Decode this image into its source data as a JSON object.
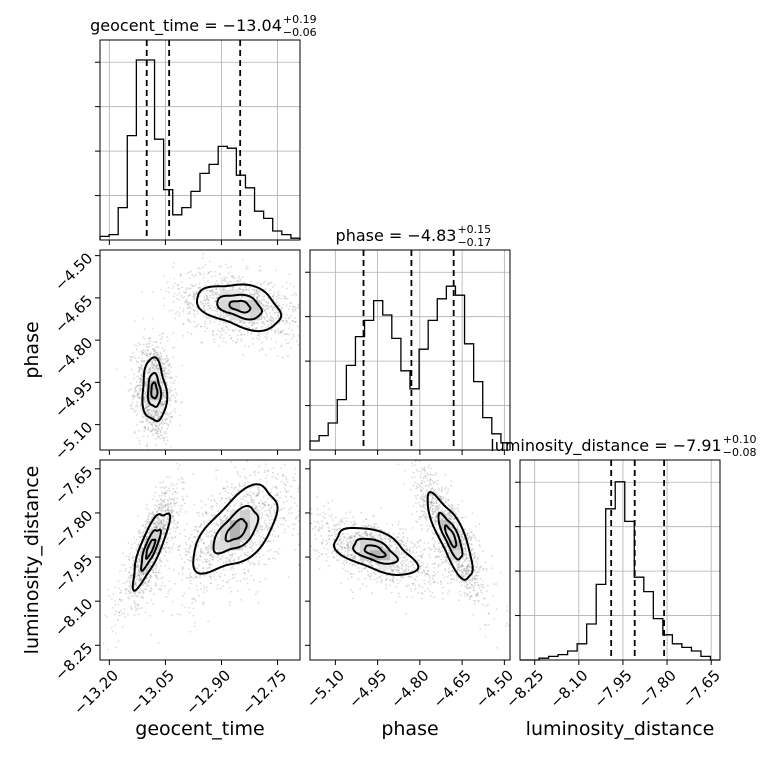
{
  "chart_data": {
    "type": "corner",
    "parameters": [
      {
        "name": "geocent_time",
        "axis_label": "geocent_time",
        "range": [
          -13.225,
          -12.69
        ],
        "ticks": [
          -13.2,
          -13.05,
          -12.9,
          -12.75
        ],
        "tick_labels": [
          "−13.20",
          "−13.05",
          "−12.90",
          "−12.75"
        ],
        "title": {
          "prefix": "geocent_time = ",
          "median": "−13.04",
          "plus": "+0.19",
          "minus": "−0.06"
        },
        "quantiles": [
          -13.1,
          -13.04,
          -12.85
        ],
        "hist_edges_range": [
          -13.225,
          -12.69
        ],
        "hist_counts": [
          0.02,
          0.03,
          0.18,
          0.58,
          1.0,
          1.0,
          0.56,
          0.28,
          0.14,
          0.18,
          0.27,
          0.37,
          0.42,
          0.52,
          0.51,
          0.36,
          0.29,
          0.16,
          0.12,
          0.05,
          0.03,
          0.01
        ]
      },
      {
        "name": "phase",
        "axis_label": "phase",
        "range": [
          -5.19,
          -4.48
        ],
        "ticks": [
          -5.1,
          -4.95,
          -4.8,
          -4.65,
          -4.5
        ],
        "tick_labels": [
          "−5.10",
          "−4.95",
          "−4.80",
          "−4.65",
          "−4.50"
        ],
        "title": {
          "prefix": "phase = ",
          "median": "−4.83",
          "plus": "+0.15",
          "minus": "−0.17"
        },
        "quantiles": [
          -5.0,
          -4.83,
          -4.68
        ],
        "hist_edges_range": [
          -5.19,
          -4.48
        ],
        "hist_counts": [
          0.05,
          0.08,
          0.15,
          0.28,
          0.47,
          0.63,
          0.72,
          0.83,
          0.75,
          0.62,
          0.44,
          0.34,
          0.56,
          0.72,
          0.84,
          0.91,
          0.86,
          0.59,
          0.38,
          0.18,
          0.09,
          0.04
        ]
      },
      {
        "name": "luminosity_distance",
        "axis_label": "luminosity_distance",
        "range": [
          -8.3,
          -7.62
        ],
        "ticks": [
          -8.25,
          -8.1,
          -7.95,
          -7.8,
          -7.65
        ],
        "tick_labels": [
          "−8.25",
          "−8.10",
          "−7.95",
          "−7.80",
          "−7.65"
        ],
        "title": {
          "prefix": "luminosity_distance = ",
          "median": "−7.91",
          "plus": "+0.10",
          "minus": "−0.08"
        },
        "quantiles": [
          -7.99,
          -7.91,
          -7.81
        ],
        "hist_edges_range": [
          -8.3,
          -7.62
        ],
        "hist_counts": [
          0.0,
          0.0,
          0.01,
          0.02,
          0.03,
          0.05,
          0.09,
          0.2,
          0.42,
          0.84,
          0.99,
          0.77,
          0.46,
          0.38,
          0.23,
          0.14,
          0.09,
          0.07,
          0.05,
          0.02,
          0.0
        ]
      }
    ],
    "blobs": {
      "phase_vs_geocent": [
        {
          "cx": -13.08,
          "cy": -4.98,
          "sx": 0.02,
          "sy": 0.07,
          "rho": -0.1,
          "weight": 0.5
        },
        {
          "cx": -12.85,
          "cy": -4.68,
          "sx": 0.07,
          "sy": 0.05,
          "rho": -0.35,
          "weight": 0.5
        }
      ],
      "lumdist_vs_geocent": [
        {
          "cx": -13.09,
          "cy": -7.92,
          "sx": 0.03,
          "sy": 0.08,
          "rho": 0.8,
          "weight": 0.5
        },
        {
          "cx": -12.86,
          "cy": -7.86,
          "sx": 0.07,
          "sy": 0.09,
          "rho": 0.6,
          "weight": 0.5
        }
      ],
      "lumdist_vs_phase": [
        {
          "cx": -4.96,
          "cy": -7.93,
          "sx": 0.09,
          "sy": 0.05,
          "rho": -0.55,
          "weight": 0.5
        },
        {
          "cx": -4.69,
          "cy": -7.88,
          "sx": 0.05,
          "sy": 0.09,
          "rho": -0.8,
          "weight": 0.5
        }
      ]
    },
    "contour_levels": [
      0.4,
      0.85,
      1.6
    ]
  }
}
